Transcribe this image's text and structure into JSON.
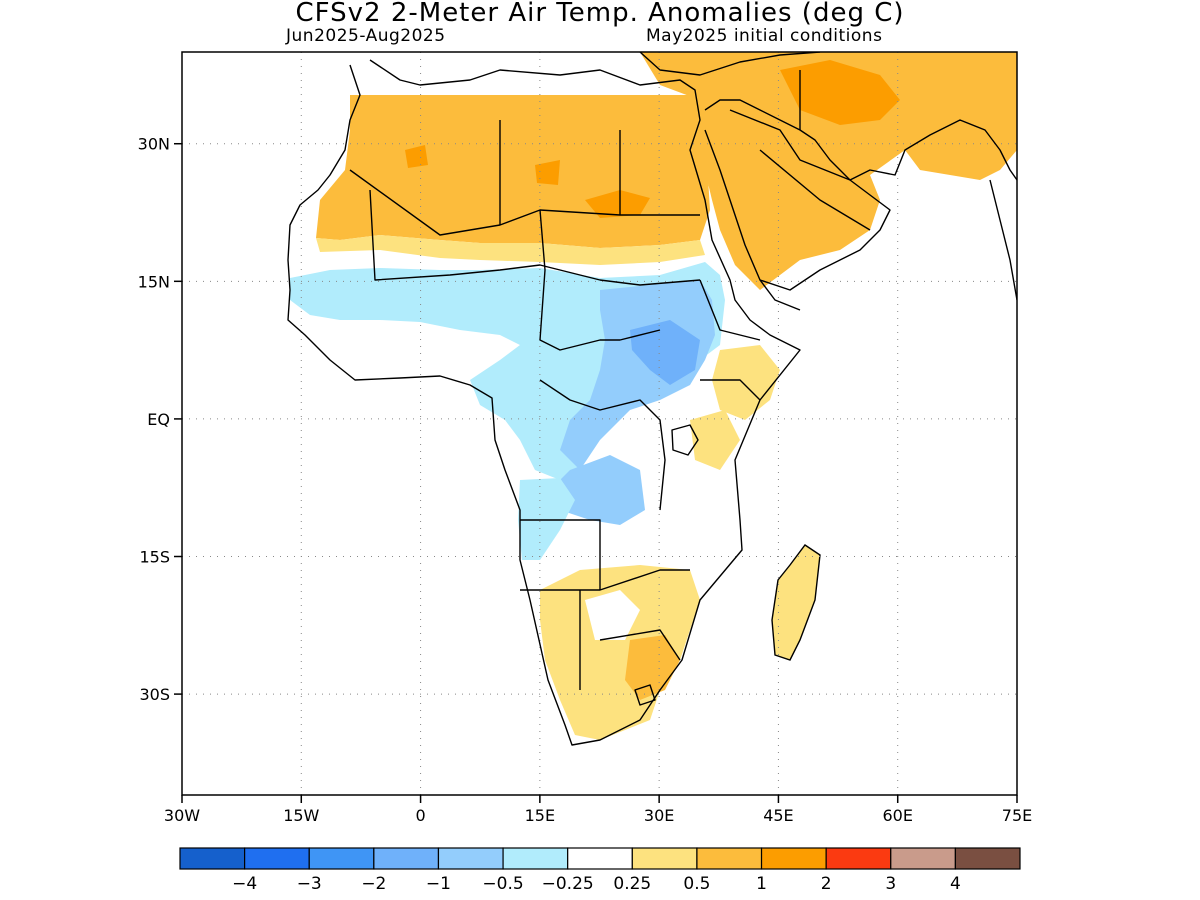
{
  "title": "CFSv2 2-Meter Air Temp. Anomalies (deg C)",
  "subtitle_left": "Jun2025-Aug2025",
  "subtitle_right": "May2025 initial conditions",
  "map": {
    "lon_range": [
      -30,
      75
    ],
    "lat_range": [
      -41,
      40
    ],
    "x_ticks": [
      {
        "value": -30,
        "label": "30W"
      },
      {
        "value": -15,
        "label": "15W"
      },
      {
        "value": 0,
        "label": "0"
      },
      {
        "value": 15,
        "label": "15E"
      },
      {
        "value": 30,
        "label": "30E"
      },
      {
        "value": 45,
        "label": "45E"
      },
      {
        "value": 60,
        "label": "60E"
      },
      {
        "value": 75,
        "label": "75E"
      }
    ],
    "y_ticks": [
      {
        "value": 30,
        "label": "30N"
      },
      {
        "value": 15,
        "label": "15N"
      },
      {
        "value": 0,
        "label": "EQ"
      },
      {
        "value": -15,
        "label": "15S"
      },
      {
        "value": -30,
        "label": "30S"
      }
    ],
    "grid": "dotted"
  },
  "colorbar": {
    "colors": [
      "#1560cc",
      "#1f6ff0",
      "#3f95f5",
      "#6fb1fa",
      "#93cdfc",
      "#b1ecfc",
      "#ffffff",
      "#fde27f",
      "#fcbc3c",
      "#fc9d00",
      "#fb3a11",
      "#c99b8b",
      "#7a4f41"
    ],
    "labels": [
      "-4",
      "-3",
      "-2",
      "-1",
      "-0.5",
      "-0.25",
      "0.25",
      "0.5",
      "1",
      "2",
      "3",
      "4"
    ]
  },
  "legend_colors": {
    "white": "#ffffff",
    "light_yellow": "#fde27f",
    "yellow_orange": "#fcbc3c",
    "orange": "#fc9d00",
    "light_blue": "#b1ecfc",
    "blue": "#93cdfc",
    "mid_blue": "#6fb1fa"
  }
}
